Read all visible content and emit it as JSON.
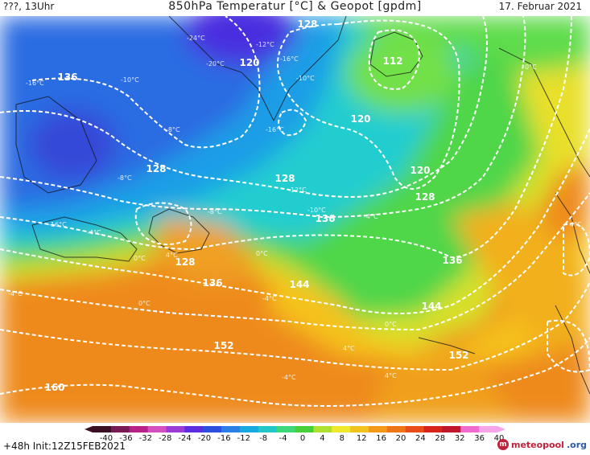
{
  "header": {
    "left": "???, 13Uhr",
    "title": "850hPa Temperatur [°C] & Geopot [gpdm]",
    "date": "17. Februar 2021"
  },
  "footer": {
    "init": "+48h Init:12Z15FEB2021",
    "logo_main": "meteopool",
    "logo_tld": ".org"
  },
  "scale": {
    "ticks": [
      "-40",
      "-36",
      "-32",
      "-28",
      "-24",
      "-20",
      "-16",
      "-12",
      "-8",
      "-4",
      "0",
      "4",
      "8",
      "12",
      "16",
      "20",
      "24",
      "28",
      "32",
      "36",
      "40"
    ],
    "colors": [
      "#3a0f24",
      "#7a1a55",
      "#b8208a",
      "#d44fc0",
      "#9a3cd8",
      "#5a2ee0",
      "#2c4fe0",
      "#2b7fe6",
      "#1aa9de",
      "#22c8c8",
      "#3ed77a",
      "#47cf3a",
      "#aee02e",
      "#f0e82a",
      "#f2c21e",
      "#f29a18",
      "#ee7418",
      "#e84d1a",
      "#d8231c",
      "#c0162c",
      "#f06ad0",
      "#f6a6e8"
    ]
  },
  "isolines": [
    "112",
    "120",
    "120",
    "120",
    "128",
    "128",
    "128",
    "128",
    "128",
    "136",
    "136",
    "136",
    "136",
    "144",
    "144",
    "152",
    "152",
    "160"
  ],
  "temp_labels": [
    "-24°C",
    "-20°C",
    "-16°C",
    "-12°C",
    "-16°C",
    "-10°C",
    "-16°C",
    "-10°C",
    "-8°C",
    "-12°C",
    "-10°C",
    "-4°C",
    "-16°C",
    "-8°C",
    "-8°C",
    "-4°C",
    "0°C",
    "-4°C",
    "0°C",
    "4°C",
    "0°C",
    "-4°C",
    "4°C",
    "0°C",
    "4°C",
    "4°C",
    "0°C",
    "-4°C"
  ]
}
